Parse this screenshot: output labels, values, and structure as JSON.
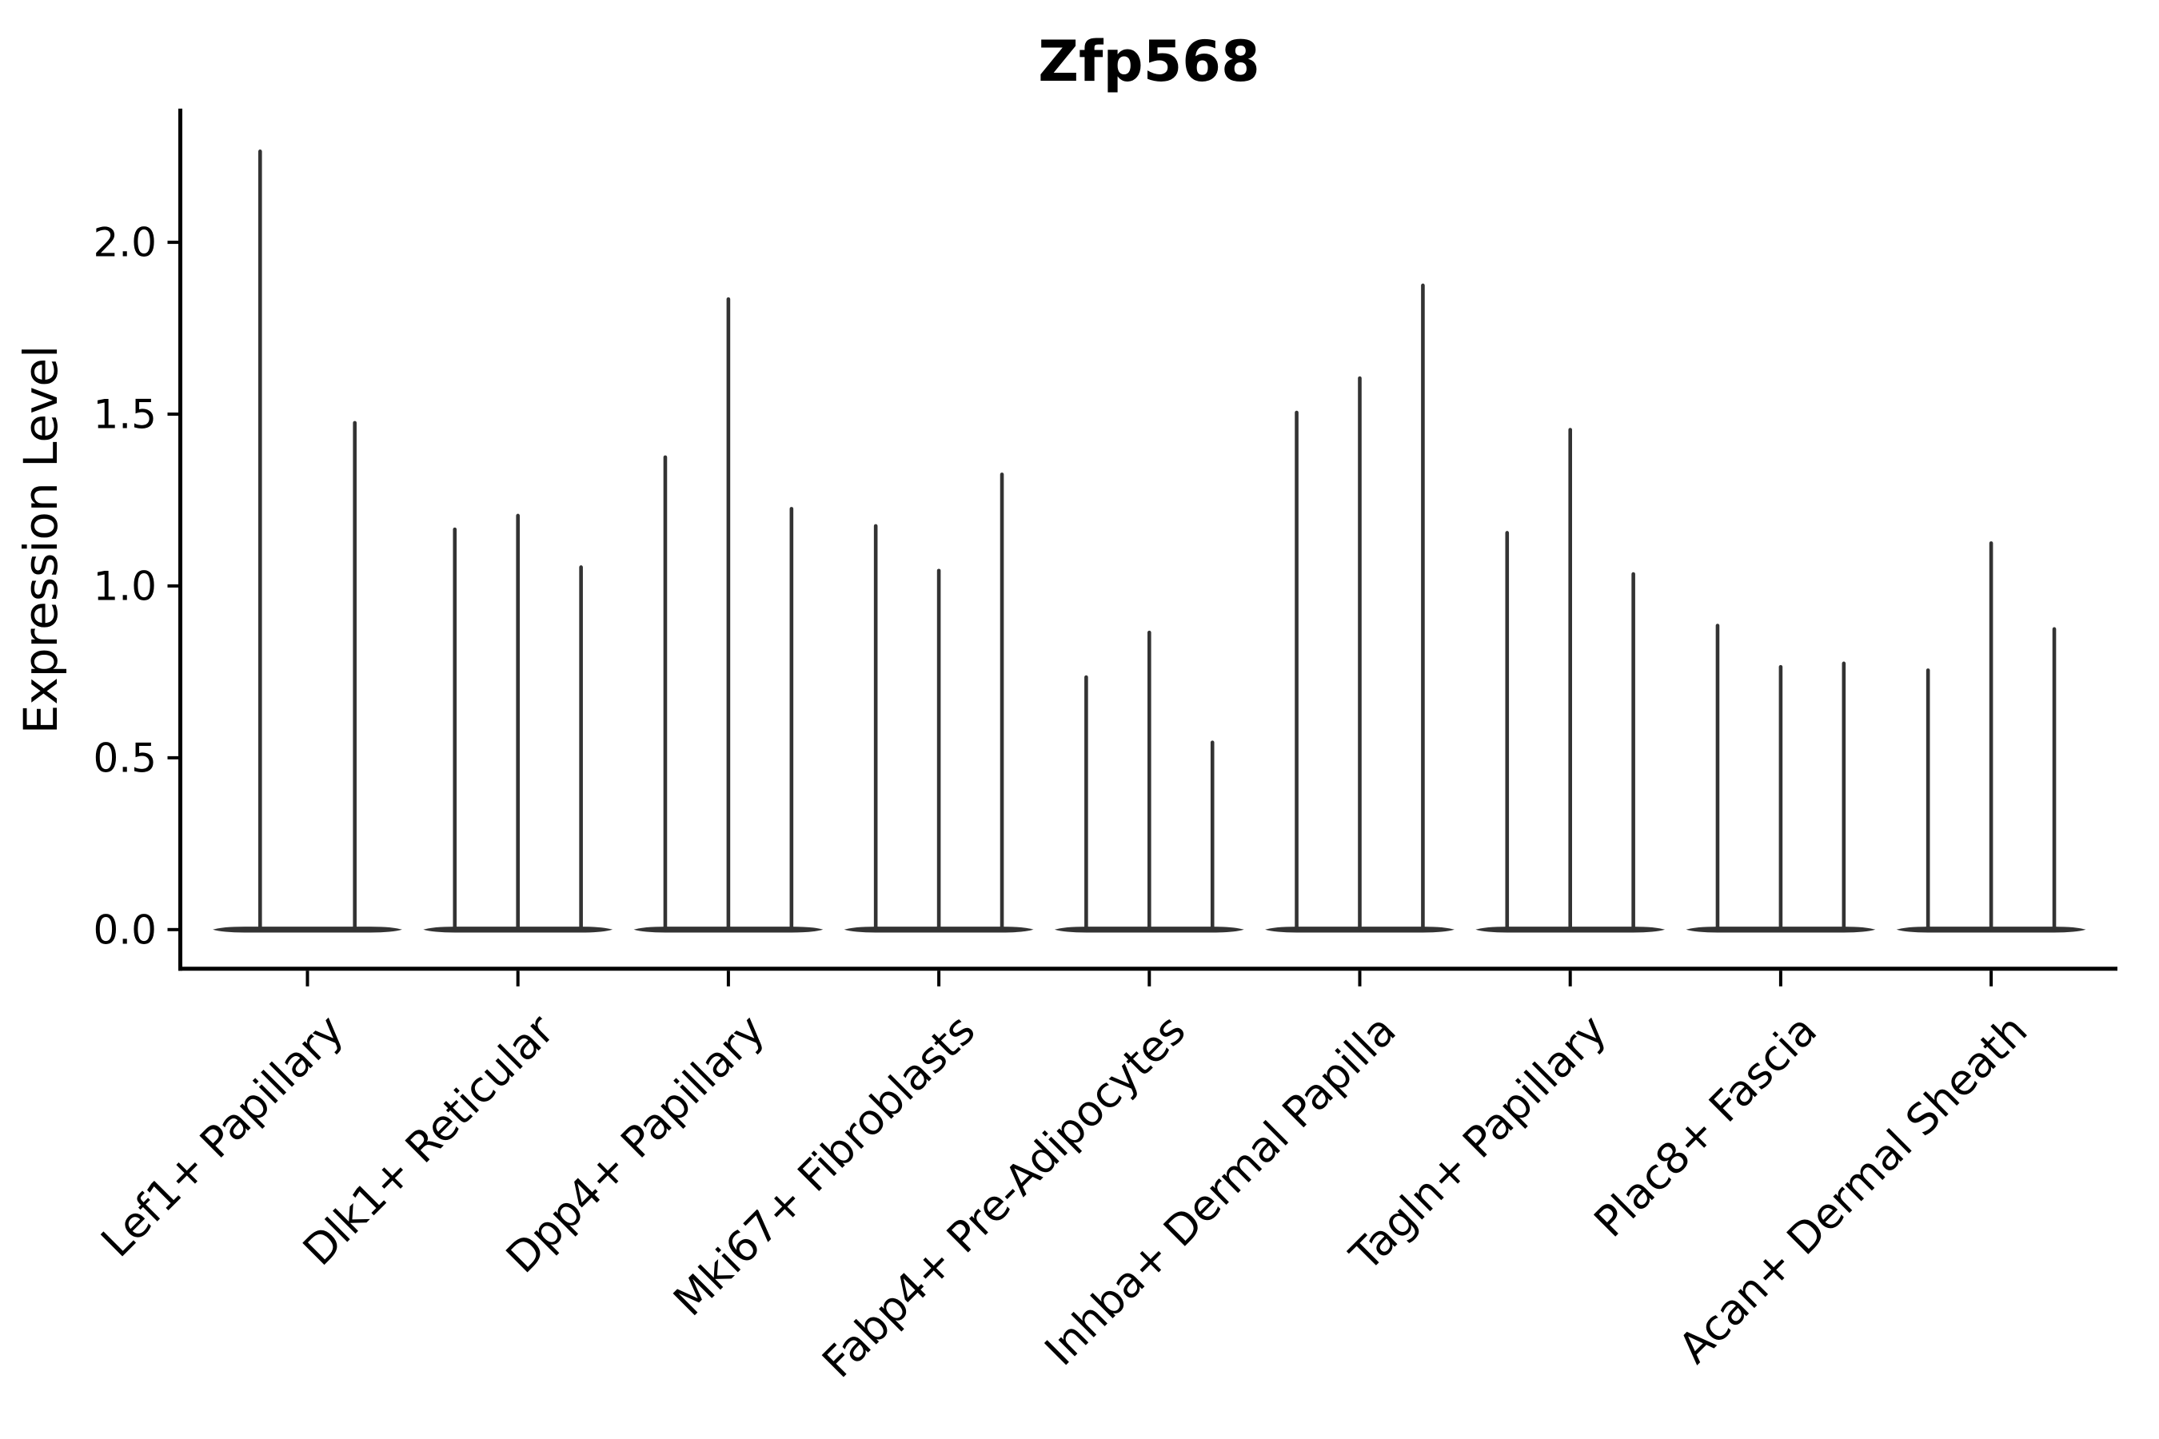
{
  "chart_data": {
    "type": "violin",
    "title": "Zfp568",
    "ylabel": "Expression Level",
    "xlabel": "",
    "yticks": [
      "0.0",
      "0.5",
      "1.0",
      "1.5",
      "2.0"
    ],
    "ylim": [
      -0.11,
      2.38
    ],
    "grid": false,
    "legend": "none",
    "baseline_value": 0.0,
    "groups": [
      {
        "label": "Lef1+ Papillary",
        "violin_peaks": [
          2.27,
          1.48
        ]
      },
      {
        "label": "Dlk1+ Reticular",
        "violin_peaks": [
          1.17,
          1.21,
          1.06
        ]
      },
      {
        "label": "Dpp4+ Papillary",
        "violin_peaks": [
          1.38,
          1.84,
          1.23
        ]
      },
      {
        "label": "Mki67+ Fibroblasts",
        "violin_peaks": [
          1.18,
          1.05,
          1.33
        ]
      },
      {
        "label": "Fabp4+ Pre-Adipocytes",
        "violin_peaks": [
          0.74,
          0.87,
          0.55
        ]
      },
      {
        "label": "Inhba+ Dermal Papilla",
        "violin_peaks": [
          1.51,
          1.61,
          1.88
        ]
      },
      {
        "label": "Tagln+ Papillary",
        "violin_peaks": [
          1.16,
          1.46,
          1.04
        ]
      },
      {
        "label": "Plac8+ Fascia",
        "violin_peaks": [
          0.89,
          0.77,
          0.78
        ]
      },
      {
        "label": "Acan+ Dermal Sheath",
        "violin_peaks": [
          0.76,
          1.13,
          0.88
        ]
      }
    ]
  },
  "style": {
    "background": "#ffffff",
    "ink": "#000000",
    "violin_color": "#333333"
  }
}
